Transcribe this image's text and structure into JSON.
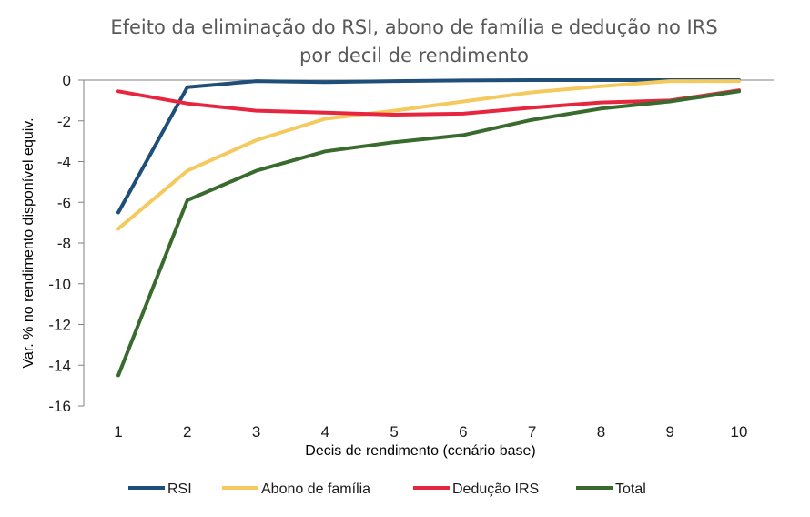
{
  "chart_data": {
    "type": "line",
    "title_lines": [
      "Efeito da eliminação do RSI, abono de família e dedução no IRS",
      "por decil de rendimento"
    ],
    "xlabel": "Decis de rendimento (cenário base)",
    "ylabel": "Var. % no rendimento disponível equiv.",
    "x": [
      1,
      2,
      3,
      4,
      5,
      6,
      7,
      8,
      9,
      10
    ],
    "x_tick_labels": [
      "1",
      "2",
      "3",
      "4",
      "5",
      "6",
      "7",
      "8",
      "9",
      "10"
    ],
    "ylim": [
      -16,
      0
    ],
    "y_ticks": [
      0,
      -2,
      -4,
      -6,
      -8,
      -10,
      -12,
      -14,
      -16
    ],
    "y_tick_labels": [
      "0",
      "-2",
      "-4",
      "-6",
      "-8",
      "-10",
      "-12",
      "-14",
      "-16"
    ],
    "grid": false,
    "legend_position": "bottom",
    "series": [
      {
        "name": "RSI",
        "color": "#1f4e79",
        "values": [
          -6.5,
          -0.35,
          -0.05,
          -0.1,
          -0.05,
          -0.02,
          0,
          0,
          0,
          0
        ]
      },
      {
        "name": "Abono de família",
        "color": "#f4c95d",
        "values": [
          -7.3,
          -4.45,
          -2.95,
          -1.9,
          -1.5,
          -1.05,
          -0.6,
          -0.3,
          -0.05,
          -0.05
        ]
      },
      {
        "name": "Dedução IRS",
        "color": "#e8253f",
        "values": [
          -0.55,
          -1.15,
          -1.5,
          -1.6,
          -1.7,
          -1.65,
          -1.35,
          -1.1,
          -1.0,
          -0.5
        ]
      },
      {
        "name": "Total",
        "color": "#3a6b2e",
        "values": [
          -14.5,
          -5.9,
          -4.45,
          -3.5,
          -3.05,
          -2.7,
          -1.95,
          -1.4,
          -1.05,
          -0.55
        ]
      }
    ]
  }
}
